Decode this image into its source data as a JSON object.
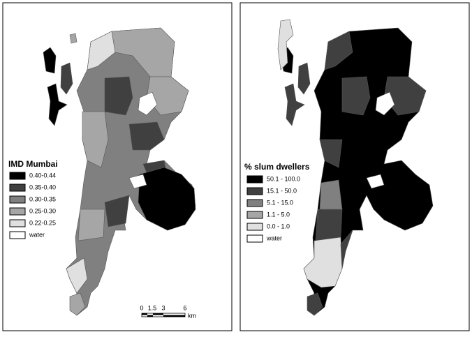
{
  "panels": [
    {
      "legend": {
        "title": "IMD Mumbai",
        "items": [
          "0.40-0.44",
          "0.35-0.40",
          "0.30-0.35",
          "0.25-0.30",
          "0.22-0.25",
          "water"
        ]
      },
      "scale_bar": {
        "labels": [
          "0",
          "1.5",
          "3",
          "6"
        ],
        "unit": "km"
      }
    },
    {
      "legend": {
        "title": "% slum dwellers",
        "items": [
          "50.1 - 100.0",
          "15.1 - 50.0",
          "5.1 - 15.0",
          "1.1 - 5.0",
          "0.0 - 1.0",
          "water"
        ]
      }
    }
  ]
}
